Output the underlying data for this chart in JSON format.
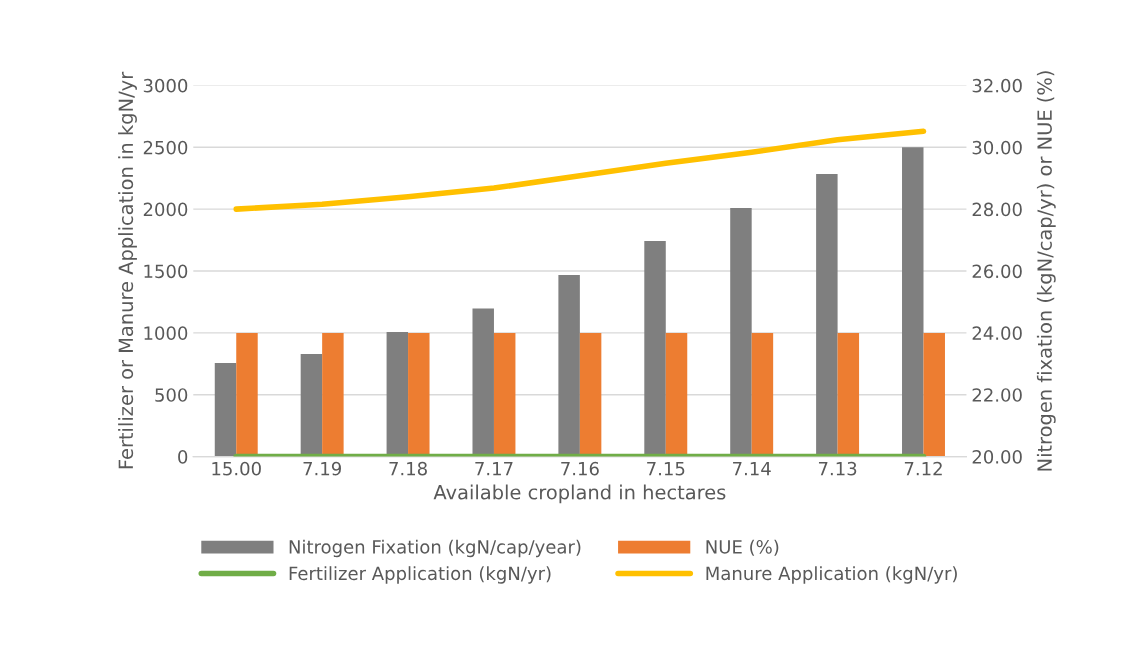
{
  "chart_data": {
    "type": "bar",
    "xlabel": "Available cropland in hectares",
    "ylabel": "Fertilizer or Manure Application in kgN/yr",
    "y2label": "Nitrogen fixation (kgN/cap/yr) or NUE (%)",
    "categories": [
      "15.00",
      "7.19",
      "7.18",
      "7.17",
      "7.16",
      "7.15",
      "7.14",
      "7.13",
      "7.12"
    ],
    "series": [
      {
        "name": "Nitrogen Fixation (kgN/cap/year)",
        "axis": "y2",
        "color": "#7f7f7f",
        "values": [
          23.03,
          23.32,
          24.03,
          24.79,
          25.87,
          26.97,
          28.04,
          29.14,
          30.0
        ]
      },
      {
        "name": "NUE (%)",
        "axis": "y2",
        "color": "#ed7d31",
        "values": [
          24,
          24,
          24,
          24,
          24,
          24,
          24,
          24,
          24
        ]
      },
      {
        "name": "Fertilizer Application (kgN/yr)",
        "type": "line",
        "axis": "y",
        "color": "#70ad47",
        "values": [
          0,
          0,
          0,
          0,
          0,
          0,
          0,
          0,
          0
        ]
      },
      {
        "name": "Manure Application (kgN/yr)",
        "type": "line",
        "axis": "y",
        "color": "#ffc000",
        "values": [
          2000,
          2040,
          2100,
          2170,
          2270,
          2370,
          2460,
          2560,
          2630
        ]
      }
    ],
    "ylim": [
      0,
      3000
    ],
    "yticks": [
      0,
      500,
      1000,
      1500,
      2000,
      2500,
      3000
    ],
    "y2lim": [
      20,
      32
    ],
    "y2ticks": [
      {
        "value": 20,
        "label": "20.00"
      },
      {
        "value": 22,
        "label": "22.00"
      },
      {
        "value": 24,
        "label": "24.00"
      },
      {
        "value": 26,
        "label": "26.00"
      },
      {
        "value": 28,
        "label": "28.00"
      },
      {
        "value": 30,
        "label": "30.00"
      },
      {
        "value": 32,
        "label": "32.00"
      }
    ],
    "grid": "y",
    "legend": "bottom"
  }
}
